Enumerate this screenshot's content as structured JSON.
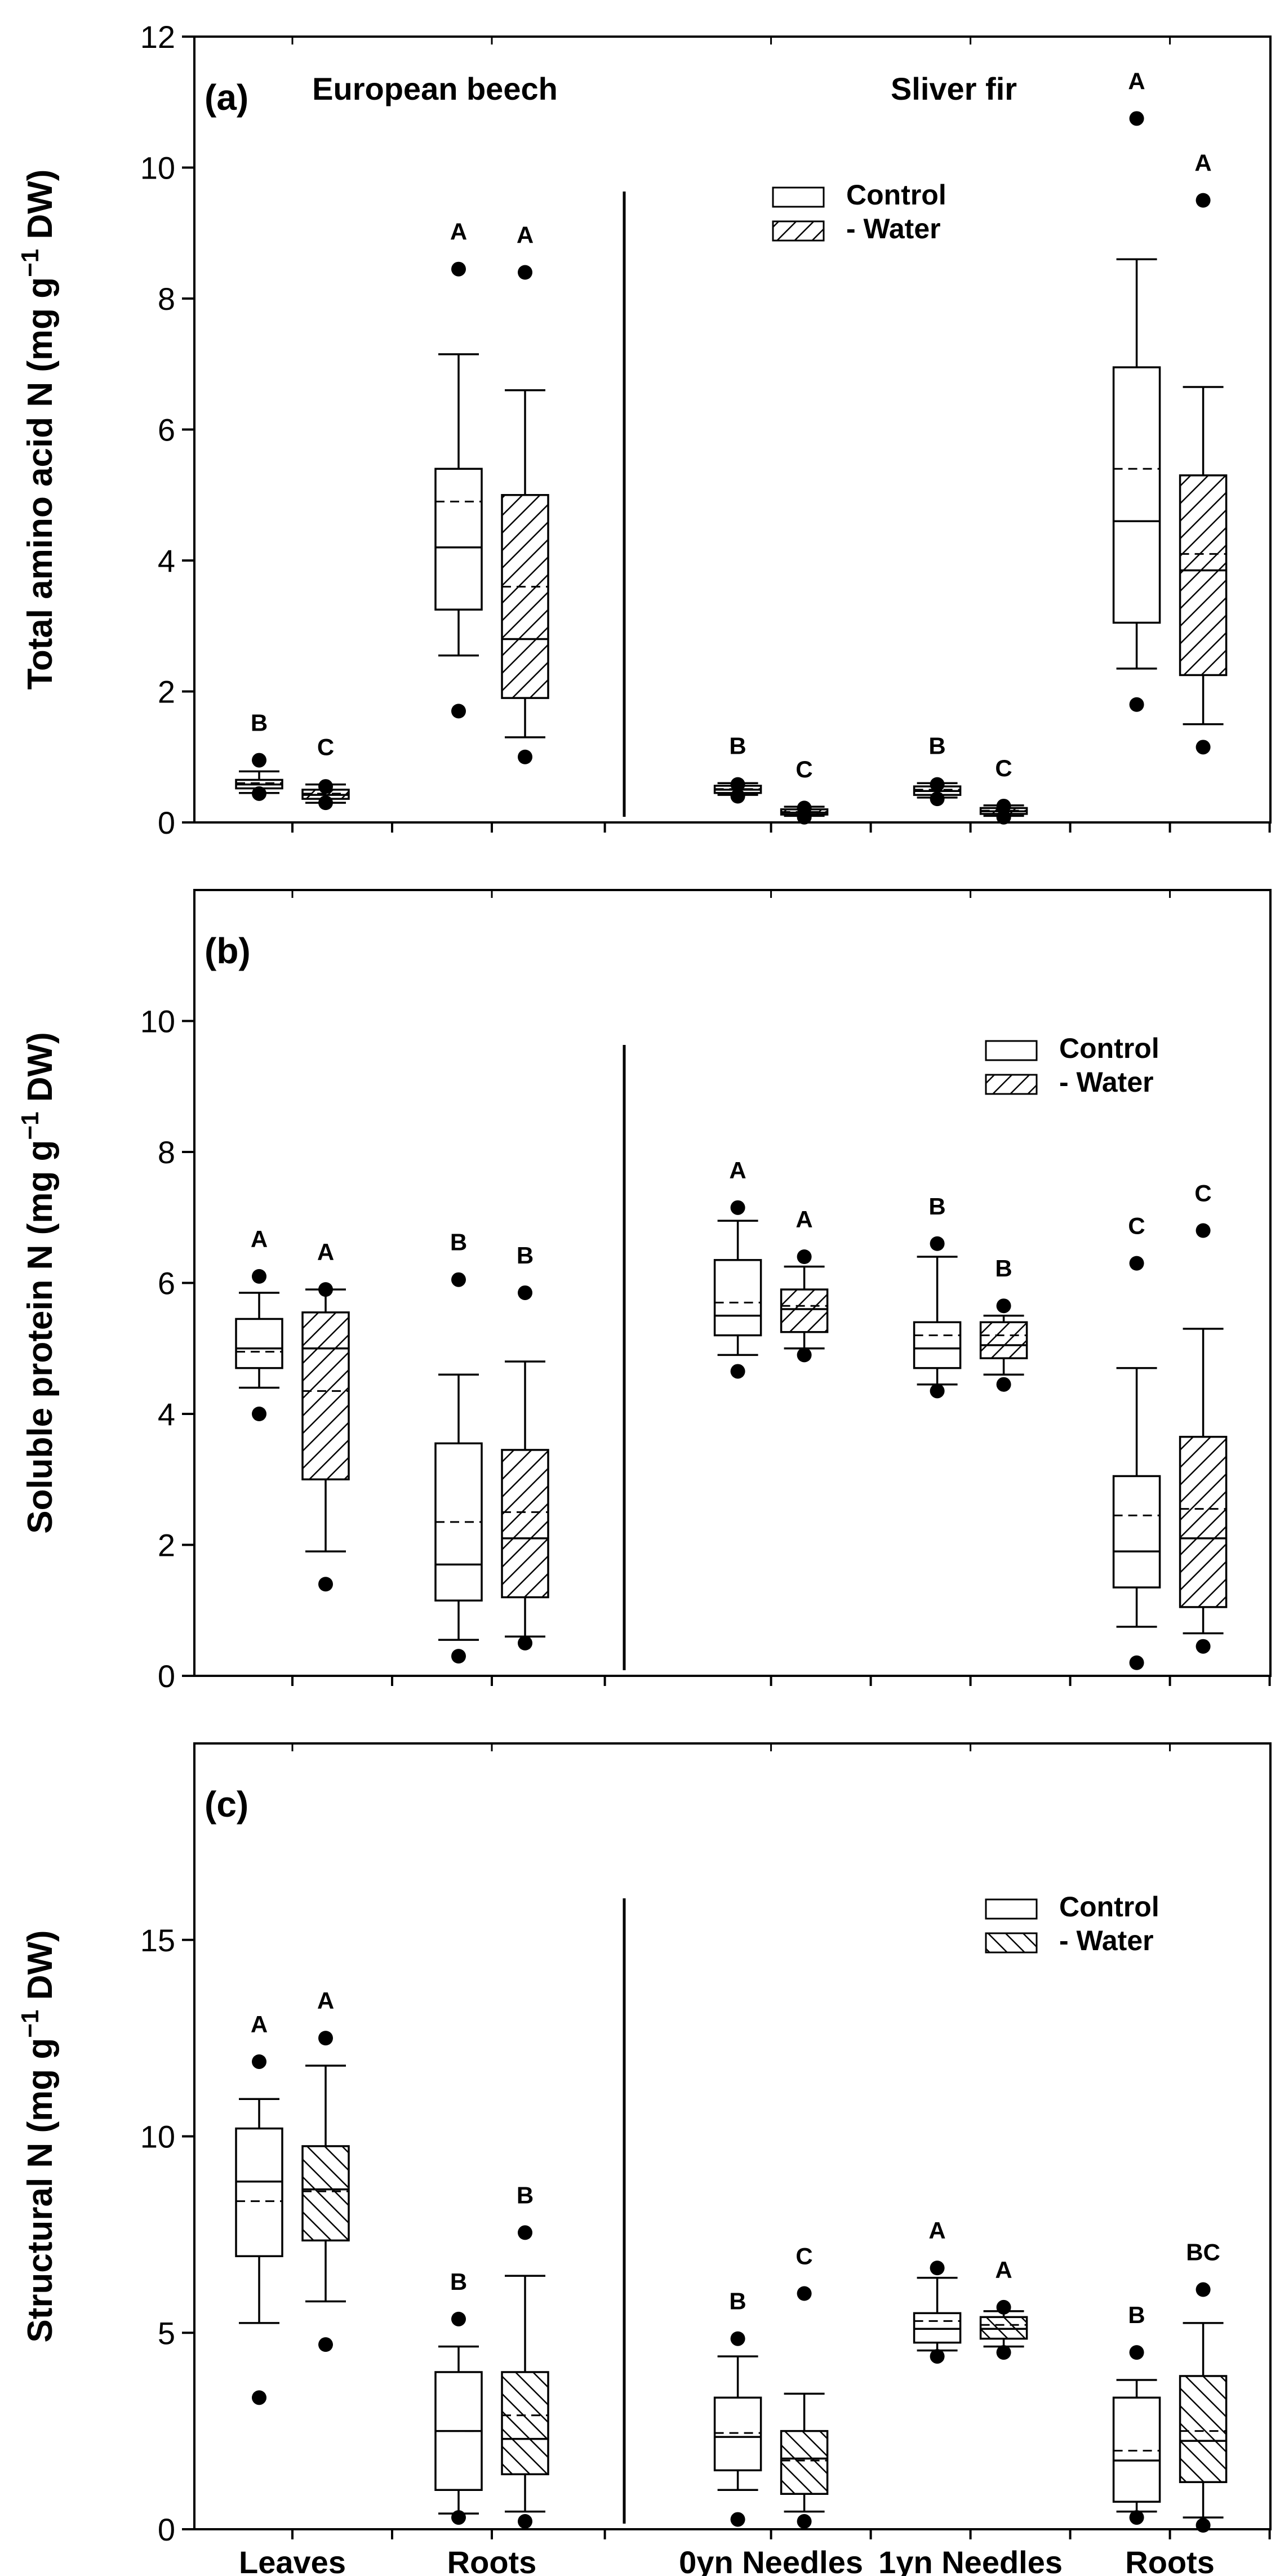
{
  "chart_data": [
    {
      "panel": "(a)",
      "type": "box",
      "ylabel": "Total amino acid N (mg g",
      "ylabel_sup": "−1",
      "ylabel_tail": " DW)",
      "ylim": [
        0,
        12
      ],
      "yticks": [
        0,
        2,
        4,
        6,
        8,
        10,
        12
      ],
      "group_titles": [
        "European beech",
        "Sliver fir"
      ],
      "legend": {
        "position": "top-center",
        "entries": [
          "Control",
          "- Water"
        ],
        "pattern": "back-diagonal"
      },
      "boxes": [
        {
          "x": 0,
          "series": "Control",
          "whislo": 0.45,
          "q1": 0.52,
          "med": 0.58,
          "mean": 0.6,
          "q3": 0.65,
          "whishi": 0.78,
          "outliers": [
            0.44,
            0.95
          ],
          "letter": "B"
        },
        {
          "x": 1,
          "series": "- Water",
          "whislo": 0.3,
          "q1": 0.36,
          "med": 0.42,
          "mean": 0.44,
          "q3": 0.5,
          "whishi": 0.58,
          "outliers": [
            0.3,
            0.55
          ],
          "letter": "C"
        },
        {
          "x": 3,
          "series": "Control",
          "whislo": 2.55,
          "q1": 3.25,
          "med": 4.2,
          "mean": 4.9,
          "q3": 5.4,
          "whishi": 7.15,
          "outliers": [
            1.7,
            8.45
          ],
          "letter": "A"
        },
        {
          "x": 4,
          "series": "- Water",
          "whislo": 1.3,
          "q1": 1.9,
          "med": 2.8,
          "mean": 3.6,
          "q3": 5.0,
          "whishi": 6.6,
          "outliers": [
            1.0,
            8.4
          ],
          "letter": "A"
        },
        {
          "x": 7.2,
          "series": "Control",
          "whislo": 0.42,
          "q1": 0.45,
          "med": 0.5,
          "mean": 0.51,
          "q3": 0.56,
          "whishi": 0.6,
          "outliers": [
            0.4,
            0.58
          ],
          "letter": "B"
        },
        {
          "x": 8.2,
          "series": "- Water",
          "whislo": 0.1,
          "q1": 0.12,
          "med": 0.15,
          "mean": 0.16,
          "q3": 0.2,
          "whishi": 0.24,
          "outliers": [
            0.08,
            0.22
          ],
          "letter": "C"
        },
        {
          "x": 10.2,
          "series": "Control",
          "whislo": 0.38,
          "q1": 0.42,
          "med": 0.48,
          "mean": 0.5,
          "q3": 0.55,
          "whishi": 0.6,
          "outliers": [
            0.36,
            0.58
          ],
          "letter": "B"
        },
        {
          "x": 11.2,
          "series": "- Water",
          "whislo": 0.1,
          "q1": 0.13,
          "med": 0.17,
          "mean": 0.18,
          "q3": 0.22,
          "whishi": 0.26,
          "outliers": [
            0.08,
            0.25
          ],
          "letter": "C"
        },
        {
          "x": 13.2,
          "series": "Control",
          "whislo": 2.35,
          "q1": 3.05,
          "med": 4.6,
          "mean": 5.4,
          "q3": 6.95,
          "whishi": 8.6,
          "outliers": [
            1.8,
            10.75
          ],
          "letter": "A"
        },
        {
          "x": 14.2,
          "series": "- Water",
          "whislo": 1.5,
          "q1": 2.25,
          "med": 3.85,
          "mean": 4.1,
          "q3": 5.3,
          "whishi": 6.65,
          "outliers": [
            1.15,
            9.5
          ],
          "letter": "A"
        }
      ]
    },
    {
      "panel": "(b)",
      "type": "box",
      "ylabel": "Soluble protein N (mg g",
      "ylabel_sup": "−1",
      "ylabel_tail": " DW)",
      "ylim": [
        0,
        12
      ],
      "yticks": [
        0,
        2,
        4,
        6,
        8,
        10
      ],
      "group_titles": [],
      "legend": {
        "position": "top-right",
        "entries": [
          "Control",
          "- Water"
        ],
        "pattern": "back-diagonal"
      },
      "boxes": [
        {
          "x": 0,
          "series": "Control",
          "whislo": 4.4,
          "q1": 4.7,
          "med": 5.0,
          "mean": 4.95,
          "q3": 5.45,
          "whishi": 5.85,
          "outliers": [
            4.0,
            6.1
          ],
          "letter": "A"
        },
        {
          "x": 1,
          "series": "- Water",
          "whislo": 1.9,
          "q1": 3.0,
          "med": 5.0,
          "mean": 4.35,
          "q3": 5.55,
          "whishi": 5.9,
          "outliers": [
            1.4,
            5.9
          ],
          "letter": "A"
        },
        {
          "x": 3,
          "series": "Control",
          "whislo": 0.55,
          "q1": 1.15,
          "med": 1.7,
          "mean": 2.35,
          "q3": 3.55,
          "whishi": 4.6,
          "outliers": [
            0.3,
            6.05
          ],
          "letter": "B"
        },
        {
          "x": 4,
          "series": "- Water",
          "whislo": 0.6,
          "q1": 1.2,
          "med": 2.1,
          "mean": 2.5,
          "q3": 3.45,
          "whishi": 4.8,
          "outliers": [
            0.5,
            5.85
          ],
          "letter": "B"
        },
        {
          "x": 7.2,
          "series": "Control",
          "whislo": 4.9,
          "q1": 5.2,
          "med": 5.5,
          "mean": 5.7,
          "q3": 6.35,
          "whishi": 6.95,
          "outliers": [
            4.65,
            7.15
          ],
          "letter": "A"
        },
        {
          "x": 8.2,
          "series": "- Water",
          "whislo": 5.0,
          "q1": 5.25,
          "med": 5.6,
          "mean": 5.65,
          "q3": 5.9,
          "whishi": 6.25,
          "outliers": [
            4.9,
            6.4
          ],
          "letter": "A"
        },
        {
          "x": 10.2,
          "series": "Control",
          "whislo": 4.45,
          "q1": 4.7,
          "med": 5.0,
          "mean": 5.2,
          "q3": 5.4,
          "whishi": 6.4,
          "outliers": [
            4.35,
            6.6
          ],
          "letter": "B"
        },
        {
          "x": 11.2,
          "series": "- Water",
          "whislo": 4.6,
          "q1": 4.85,
          "med": 5.05,
          "mean": 5.2,
          "q3": 5.4,
          "whishi": 5.5,
          "outliers": [
            4.45,
            5.65
          ],
          "letter": "B"
        },
        {
          "x": 13.2,
          "series": "Control",
          "whislo": 0.75,
          "q1": 1.35,
          "med": 1.9,
          "mean": 2.45,
          "q3": 3.05,
          "whishi": 4.7,
          "outliers": [
            0.2,
            6.3
          ],
          "letter": "C"
        },
        {
          "x": 14.2,
          "series": "- Water",
          "whislo": 0.65,
          "q1": 1.05,
          "med": 2.1,
          "mean": 2.55,
          "q3": 3.65,
          "whishi": 5.3,
          "outliers": [
            0.45,
            6.8
          ],
          "letter": "C"
        }
      ]
    },
    {
      "panel": "(c)",
      "type": "box",
      "ylabel": "Structural N (mg g",
      "ylabel_sup": "−1",
      "ylabel_tail": " DW)",
      "ylim": [
        0,
        20
      ],
      "yticks": [
        0,
        5,
        10,
        15
      ],
      "group_titles": [],
      "legend": {
        "position": "top-right",
        "entries": [
          "Control",
          "- Water"
        ],
        "pattern": "forward-diagonal"
      },
      "categories": [
        "Leaves",
        "Roots",
        "0yn Needles",
        "1yn Needles",
        "Roots"
      ],
      "category_x": [
        0.5,
        3.5,
        7.7,
        10.7,
        13.7
      ],
      "boxes": [
        {
          "x": 0,
          "series": "Control",
          "whislo": 5.25,
          "q1": 6.95,
          "med": 8.85,
          "mean": 8.35,
          "q3": 10.2,
          "whishi": 10.95,
          "outliers": [
            3.35,
            11.9
          ],
          "letter": "A"
        },
        {
          "x": 1,
          "series": "- Water",
          "whislo": 5.8,
          "q1": 7.35,
          "med": 8.65,
          "mean": 8.6,
          "q3": 9.75,
          "whishi": 11.8,
          "outliers": [
            4.7,
            12.5
          ],
          "letter": "A"
        },
        {
          "x": 3,
          "series": "Control",
          "whislo": 0.4,
          "q1": 1.0,
          "med": 2.5,
          "mean": 2.5,
          "q3": 4.0,
          "whishi": 4.65,
          "outliers": [
            0.3,
            5.35
          ],
          "letter": "B"
        },
        {
          "x": 4,
          "series": "- Water",
          "whislo": 0.45,
          "q1": 1.4,
          "med": 2.3,
          "mean": 2.9,
          "q3": 4.0,
          "whishi": 6.45,
          "outliers": [
            0.2,
            7.55
          ],
          "letter": "B"
        },
        {
          "x": 7.2,
          "series": "Control",
          "whislo": 1.0,
          "q1": 1.5,
          "med": 2.35,
          "mean": 2.45,
          "q3": 3.35,
          "whishi": 4.4,
          "outliers": [
            0.25,
            4.85
          ],
          "letter": "B"
        },
        {
          "x": 8.2,
          "series": "- Water",
          "whislo": 0.45,
          "q1": 0.9,
          "med": 1.8,
          "mean": 1.75,
          "q3": 2.5,
          "whishi": 3.45,
          "outliers": [
            0.2,
            6.0
          ],
          "letter": "C"
        },
        {
          "x": 10.2,
          "series": "Control",
          "whislo": 4.55,
          "q1": 4.75,
          "med": 5.1,
          "mean": 5.3,
          "q3": 5.5,
          "whishi": 6.4,
          "outliers": [
            4.4,
            6.65
          ],
          "letter": "A"
        },
        {
          "x": 11.2,
          "series": "- Water",
          "whislo": 4.65,
          "q1": 4.85,
          "med": 5.1,
          "mean": 5.2,
          "q3": 5.4,
          "whishi": 5.55,
          "outliers": [
            4.5,
            5.65
          ],
          "letter": "A"
        },
        {
          "x": 13.2,
          "series": "Control",
          "whislo": 0.45,
          "q1": 0.7,
          "med": 1.75,
          "mean": 2.0,
          "q3": 3.35,
          "whishi": 3.8,
          "outliers": [
            0.3,
            4.5
          ],
          "letter": "B"
        },
        {
          "x": 14.2,
          "series": "- Water",
          "whislo": 0.3,
          "q1": 1.2,
          "med": 2.25,
          "mean": 2.5,
          "q3": 3.9,
          "whishi": 5.25,
          "outliers": [
            0.1,
            6.1
          ],
          "letter": "BC"
        }
      ]
    }
  ]
}
